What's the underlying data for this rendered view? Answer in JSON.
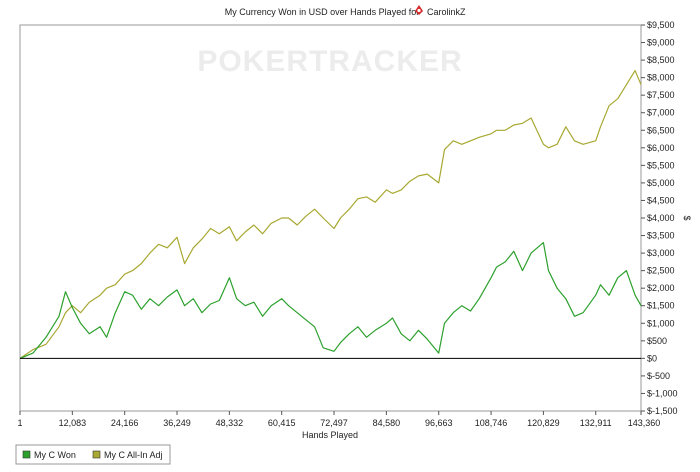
{
  "chart_data": {
    "type": "line",
    "title": "My Currency Won in USD over Hands Played for",
    "player_name": "CarolinkZ",
    "watermark": "POKERTRACKER",
    "xlabel": "Hands Played",
    "ylabel": "$",
    "xlim": [
      1,
      143360
    ],
    "ylim": [
      -1500,
      9500
    ],
    "x_ticks": [
      {
        "value": 1,
        "label": "1"
      },
      {
        "value": 12083,
        "label": "12,083"
      },
      {
        "value": 24166,
        "label": "24,166"
      },
      {
        "value": 36249,
        "label": "36,249"
      },
      {
        "value": 48332,
        "label": "48,332"
      },
      {
        "value": 60415,
        "label": "60,415"
      },
      {
        "value": 72497,
        "label": "72,497"
      },
      {
        "value": 84580,
        "label": "84,580"
      },
      {
        "value": 96663,
        "label": "96,663"
      },
      {
        "value": 108746,
        "label": "108,746"
      },
      {
        "value": 120829,
        "label": "120,829"
      },
      {
        "value": 132911,
        "label": "132,911"
      },
      {
        "value": 143360,
        "label": "143,360"
      }
    ],
    "y_ticks": [
      {
        "value": 9500,
        "label": "$9,500"
      },
      {
        "value": 9000,
        "label": "$9,000"
      },
      {
        "value": 8500,
        "label": "$8,500"
      },
      {
        "value": 8000,
        "label": "$8,000"
      },
      {
        "value": 7500,
        "label": "$7,500"
      },
      {
        "value": 7000,
        "label": "$7,000"
      },
      {
        "value": 6500,
        "label": "$6,500"
      },
      {
        "value": 6000,
        "label": "$6,000"
      },
      {
        "value": 5500,
        "label": "$5,500"
      },
      {
        "value": 5000,
        "label": "$5,000"
      },
      {
        "value": 4500,
        "label": "$4,500"
      },
      {
        "value": 4000,
        "label": "$4,000"
      },
      {
        "value": 3500,
        "label": "$3,500"
      },
      {
        "value": 3000,
        "label": "$3,000"
      },
      {
        "value": 2500,
        "label": "$2,500"
      },
      {
        "value": 2000,
        "label": "$2,000"
      },
      {
        "value": 1500,
        "label": "$1,500"
      },
      {
        "value": 1000,
        "label": "$1,000"
      },
      {
        "value": 500,
        "label": "$500"
      },
      {
        "value": 0,
        "label": "$0"
      },
      {
        "value": -500,
        "label": "$-500"
      },
      {
        "value": -1000,
        "label": "$-1,000"
      },
      {
        "value": -1500,
        "label": "$-1,500"
      }
    ],
    "grid": false,
    "legend_position": "bottom-left",
    "series": [
      {
        "name": "My C Won",
        "color": "#2ca02c",
        "x": [
          0,
          3000,
          6000,
          9000,
          10500,
          12083,
          14000,
          16000,
          18500,
          20000,
          22000,
          24166,
          26000,
          28000,
          30000,
          32000,
          34000,
          36249,
          38000,
          40000,
          42000,
          44000,
          46000,
          48332,
          50000,
          52000,
          54000,
          56000,
          58000,
          60415,
          62000,
          64000,
          66000,
          68000,
          70000,
          72497,
          74000,
          76000,
          78000,
          80000,
          82000,
          84580,
          86000,
          88000,
          90000,
          92000,
          94000,
          96663,
          98000,
          100000,
          102000,
          104000,
          106000,
          108746,
          110000,
          112000,
          114000,
          116000,
          118000,
          120829,
          122000,
          124000,
          126000,
          128000,
          130000,
          132911,
          134000,
          136000,
          138000,
          140000,
          142000,
          143360
        ],
        "y": [
          0,
          150,
          600,
          1200,
          1900,
          1450,
          1000,
          700,
          900,
          600,
          1300,
          1900,
          1800,
          1400,
          1700,
          1500,
          1750,
          1950,
          1500,
          1700,
          1300,
          1550,
          1650,
          2300,
          1700,
          1500,
          1600,
          1200,
          1500,
          1700,
          1500,
          1300,
          1100,
          900,
          300,
          200,
          450,
          700,
          900,
          600,
          800,
          1000,
          1150,
          700,
          500,
          800,
          550,
          150,
          1000,
          1300,
          1500,
          1350,
          1700,
          2300,
          2600,
          2750,
          3050,
          2500,
          3000,
          3300,
          2500,
          2000,
          1700,
          1200,
          1300,
          1800,
          2100,
          1800,
          2300,
          2500,
          1800,
          1500
        ]
      },
      {
        "name": "My C All-In Adj",
        "color": "#a8a832",
        "x": [
          0,
          3000,
          6000,
          9000,
          10500,
          12083,
          14000,
          16000,
          18500,
          20000,
          22000,
          24166,
          26000,
          28000,
          30000,
          32000,
          34000,
          36249,
          38000,
          40000,
          42000,
          44000,
          46000,
          48332,
          50000,
          52000,
          54000,
          56000,
          58000,
          60415,
          62000,
          64000,
          66000,
          68000,
          70000,
          72497,
          74000,
          76000,
          78000,
          80000,
          82000,
          84580,
          86000,
          88000,
          90000,
          92000,
          94000,
          96663,
          98000,
          100000,
          102000,
          104000,
          106000,
          108746,
          110000,
          112000,
          114000,
          116000,
          118000,
          120829,
          122000,
          124000,
          126000,
          128000,
          130000,
          132911,
          134000,
          136000,
          138000,
          140000,
          142000,
          143360
        ],
        "y": [
          0,
          250,
          400,
          900,
          1300,
          1500,
          1300,
          1600,
          1800,
          2000,
          2100,
          2400,
          2500,
          2700,
          3000,
          3250,
          3150,
          3450,
          2700,
          3150,
          3400,
          3700,
          3550,
          3750,
          3350,
          3600,
          3800,
          3550,
          3850,
          4000,
          4000,
          3800,
          4050,
          4250,
          4000,
          3700,
          4000,
          4250,
          4550,
          4600,
          4450,
          4800,
          4700,
          4800,
          5050,
          5200,
          5250,
          5000,
          5950,
          6200,
          6100,
          6200,
          6300,
          6400,
          6500,
          6500,
          6650,
          6700,
          6850,
          6100,
          6000,
          6100,
          6600,
          6200,
          6100,
          6200,
          6600,
          7200,
          7400,
          7800,
          8200,
          7800
        ]
      }
    ]
  }
}
